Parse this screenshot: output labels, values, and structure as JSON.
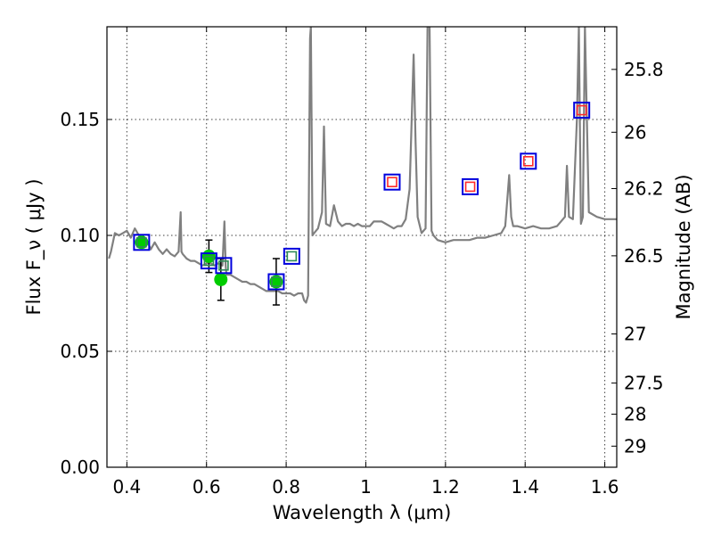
{
  "chart_data": {
    "type": "scatter",
    "title": "",
    "xlabel": "Wavelength  λ (μm)",
    "ylabel_left": "Flux  F_ν  ( μJy )",
    "ylabel_right": "Magnitude (AB)",
    "xlim": [
      0.35,
      1.63
    ],
    "ylim": [
      0.0,
      0.19
    ],
    "grid": true,
    "x_ticks": [
      0.4,
      0.6,
      0.8,
      1.0,
      1.2,
      1.4,
      1.6
    ],
    "x_tick_labels": [
      "0.4",
      "0.6",
      "0.8",
      "1",
      "1.2",
      "1.4",
      "1.6"
    ],
    "y_ticks": [
      0.0,
      0.05,
      0.1,
      0.15
    ],
    "y_tick_labels": [
      "0.00",
      "0.05",
      "0.10",
      "0.15"
    ],
    "right_ticks": [
      {
        "label": "25.8",
        "flux": 0.1716
      },
      {
        "label": "26",
        "flux": 0.1445
      },
      {
        "label": "26.2",
        "flux": 0.1202
      },
      {
        "label": "26.5",
        "flux": 0.0912
      },
      {
        "label": "27",
        "flux": 0.0575
      },
      {
        "label": "27.5",
        "flux": 0.0363
      },
      {
        "label": "28",
        "flux": 0.0229
      },
      {
        "label": "29",
        "flux": 0.0091
      }
    ],
    "series": [
      {
        "kind": "model_spectrum",
        "color": "#808080",
        "x": [
          0.355,
          0.36,
          0.37,
          0.38,
          0.39,
          0.4,
          0.41,
          0.42,
          0.43,
          0.44,
          0.45,
          0.46,
          0.47,
          0.48,
          0.49,
          0.5,
          0.51,
          0.52,
          0.53,
          0.535,
          0.537,
          0.54,
          0.55,
          0.56,
          0.57,
          0.58,
          0.59,
          0.6,
          0.61,
          0.62,
          0.63,
          0.64,
          0.645,
          0.648,
          0.65,
          0.66,
          0.67,
          0.68,
          0.69,
          0.7,
          0.71,
          0.72,
          0.73,
          0.74,
          0.75,
          0.76,
          0.77,
          0.78,
          0.79,
          0.8,
          0.81,
          0.82,
          0.83,
          0.84,
          0.845,
          0.85,
          0.855,
          0.86,
          0.862,
          0.866,
          0.87,
          0.88,
          0.89,
          0.895,
          0.9,
          0.91,
          0.92,
          0.93,
          0.94,
          0.95,
          0.96,
          0.97,
          0.98,
          0.99,
          1.0,
          1.01,
          1.02,
          1.03,
          1.04,
          1.05,
          1.06,
          1.07,
          1.08,
          1.09,
          1.1,
          1.11,
          1.12,
          1.125,
          1.13,
          1.14,
          1.15,
          1.155,
          1.16,
          1.165,
          1.17,
          1.18,
          1.2,
          1.22,
          1.24,
          1.26,
          1.28,
          1.3,
          1.32,
          1.34,
          1.35,
          1.36,
          1.365,
          1.37,
          1.38,
          1.4,
          1.42,
          1.44,
          1.46,
          1.48,
          1.49,
          1.5,
          1.505,
          1.51,
          1.52,
          1.53,
          1.535,
          1.54,
          1.545,
          1.55,
          1.56,
          1.58,
          1.6,
          1.63
        ],
        "y": [
          0.09,
          0.093,
          0.101,
          0.1,
          0.101,
          0.102,
          0.099,
          0.103,
          0.1,
          0.097,
          0.098,
          0.094,
          0.097,
          0.094,
          0.092,
          0.094,
          0.092,
          0.091,
          0.093,
          0.11,
          0.093,
          0.092,
          0.09,
          0.089,
          0.089,
          0.088,
          0.087,
          0.088,
          0.088,
          0.087,
          0.088,
          0.087,
          0.106,
          0.087,
          0.083,
          0.083,
          0.082,
          0.081,
          0.08,
          0.08,
          0.079,
          0.079,
          0.078,
          0.077,
          0.076,
          0.076,
          0.076,
          0.076,
          0.075,
          0.075,
          0.075,
          0.074,
          0.075,
          0.075,
          0.072,
          0.071,
          0.074,
          0.185,
          0.19,
          0.1,
          0.101,
          0.103,
          0.11,
          0.147,
          0.105,
          0.104,
          0.113,
          0.106,
          0.104,
          0.105,
          0.105,
          0.104,
          0.105,
          0.104,
          0.104,
          0.104,
          0.106,
          0.106,
          0.106,
          0.105,
          0.104,
          0.103,
          0.104,
          0.104,
          0.107,
          0.12,
          0.178,
          0.14,
          0.108,
          0.101,
          0.103,
          0.19,
          0.19,
          0.102,
          0.1,
          0.098,
          0.097,
          0.098,
          0.098,
          0.098,
          0.099,
          0.099,
          0.1,
          0.101,
          0.104,
          0.126,
          0.108,
          0.104,
          0.104,
          0.103,
          0.104,
          0.103,
          0.103,
          0.104,
          0.106,
          0.108,
          0.13,
          0.108,
          0.107,
          0.15,
          0.19,
          0.105,
          0.108,
          0.19,
          0.11,
          0.108,
          0.107,
          0.107
        ]
      },
      {
        "kind": "observed_points",
        "color": "#00cc00",
        "x": [
          0.437,
          0.606,
          0.636,
          0.775
        ],
        "y": [
          0.097,
          0.091,
          0.081,
          0.08
        ],
        "yerr": [
          null,
          0.007,
          0.009,
          0.01
        ]
      },
      {
        "kind": "model_photometry_boxes",
        "color": "#0000dd",
        "x": [
          0.437,
          0.606,
          0.643,
          0.775,
          0.814,
          1.066,
          1.262,
          1.408,
          1.542
        ],
        "y": [
          0.097,
          0.089,
          0.087,
          0.08,
          0.091,
          0.123,
          0.121,
          0.132,
          0.154
        ]
      },
      {
        "kind": "inner_boxes",
        "x": [
          0.437,
          0.606,
          0.643,
          0.775,
          0.814,
          1.066,
          1.262,
          1.408,
          1.542
        ],
        "y": [
          0.097,
          0.089,
          0.087,
          0.08,
          0.091,
          0.123,
          0.121,
          0.132,
          0.154
        ],
        "colors": [
          "#2e8b57",
          "#2e8b57",
          "#2e8b57",
          "#2e8b57",
          "#2e8b57",
          "#ff2a2a",
          "#ff2a2a",
          "#ff2a2a",
          "#ff2a2a"
        ]
      }
    ]
  }
}
